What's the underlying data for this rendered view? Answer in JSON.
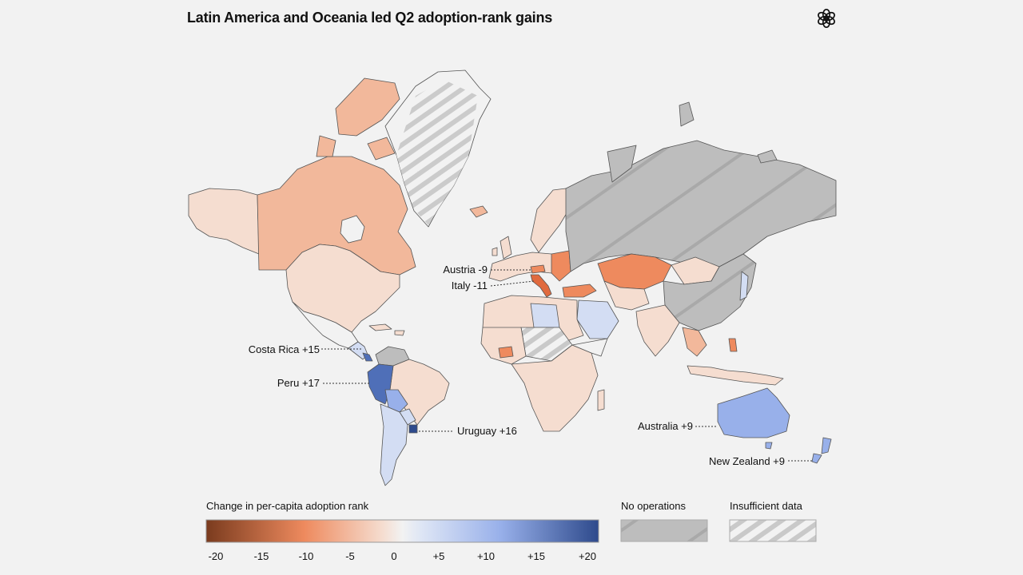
{
  "title": "Latin America and Oceania led Q2 adoption-rank gains",
  "logo_icon": "openai-logo-icon",
  "colors": {
    "background": "#f2f2f2",
    "no_operations": "#bdbdbd",
    "neg_strong": "#7a3b1e",
    "neg_mid": "#ee8a5e",
    "neg_light": "#f5d9c8",
    "neutral": "#f2f2f2",
    "pos_light": "#d3ddf3",
    "pos_mid": "#98b0ea",
    "pos_strong": "#2e4a8c"
  },
  "callouts": [
    {
      "id": "austria",
      "label": "Austria -9"
    },
    {
      "id": "italy",
      "label": "Italy -11"
    },
    {
      "id": "costa-rica",
      "label": "Costa Rica +15"
    },
    {
      "id": "peru",
      "label": "Peru +17"
    },
    {
      "id": "uruguay",
      "label": "Uruguay +16"
    },
    {
      "id": "australia",
      "label": "Australia +9"
    },
    {
      "id": "new-zealand",
      "label": "New Zealand +9"
    }
  ],
  "legend": {
    "title": "Change in per-capita adoption rank",
    "ticks": [
      "-20",
      "-15",
      "-10",
      "-5",
      "0",
      "+5",
      "+10",
      "+15",
      "+20"
    ],
    "no_operations_label": "No operations",
    "insufficient_label": "Insufficient data"
  }
}
